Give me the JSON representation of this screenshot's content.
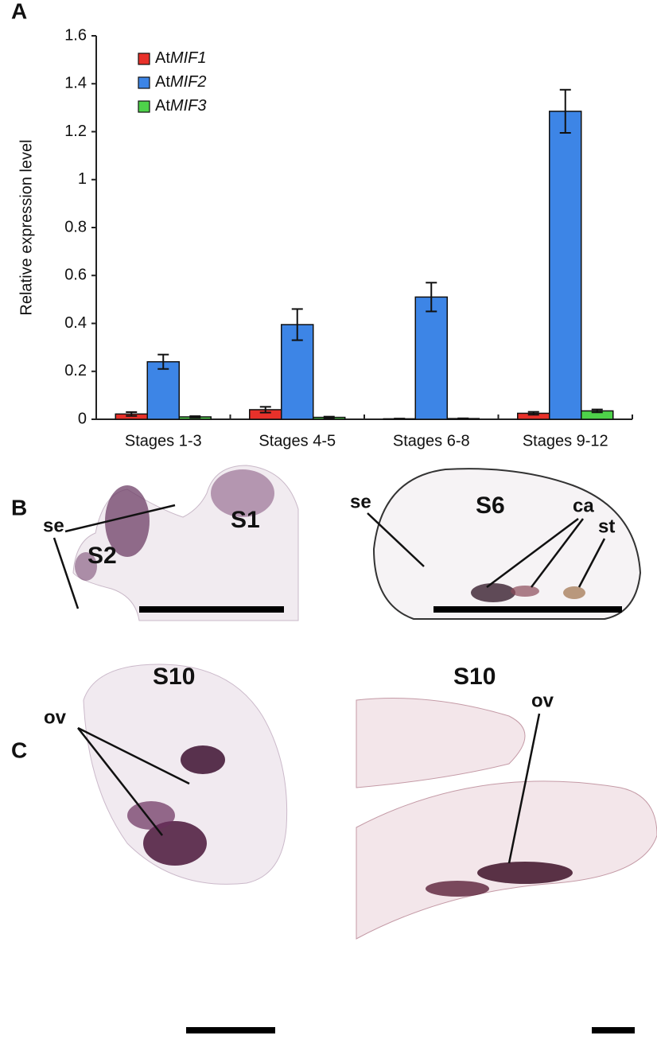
{
  "chart_data": {
    "type": "bar",
    "y_label": "Relative expression level",
    "categories": [
      "Stages 1-3",
      "Stages 4-5",
      "Stages 6-8",
      "Stages 9-12"
    ],
    "series": [
      {
        "name": "AtMIF1",
        "color": "#e8312a",
        "values": [
          0.022,
          0.04,
          0.002,
          0.025
        ],
        "errors": [
          0.008,
          0.012,
          0.001,
          0.006
        ]
      },
      {
        "name": "AtMIF2",
        "color": "#3d85e6",
        "values": [
          0.24,
          0.395,
          0.51,
          1.285
        ],
        "errors": [
          0.03,
          0.065,
          0.06,
          0.09
        ]
      },
      {
        "name": "AtMIF3",
        "color": "#4ed24a",
        "values": [
          0.01,
          0.008,
          0.003,
          0.035
        ],
        "errors": [
          0.003,
          0.003,
          0.001,
          0.006
        ]
      }
    ],
    "ylim": [
      0,
      1.6
    ],
    "yticks": [
      0,
      0.2,
      0.4,
      0.6,
      0.8,
      1,
      1.2,
      1.4,
      1.6
    ],
    "grid": false,
    "legend": "upper left"
  },
  "panel_labels": [
    "A",
    "B",
    "C"
  ],
  "annotations": {
    "b_left": [
      "se",
      "S2",
      "S1"
    ],
    "b_right": [
      "se",
      "S6",
      "ca",
      "st"
    ],
    "c_left": [
      "S10",
      "ov"
    ],
    "c_right": [
      "S10",
      "ov"
    ]
  }
}
